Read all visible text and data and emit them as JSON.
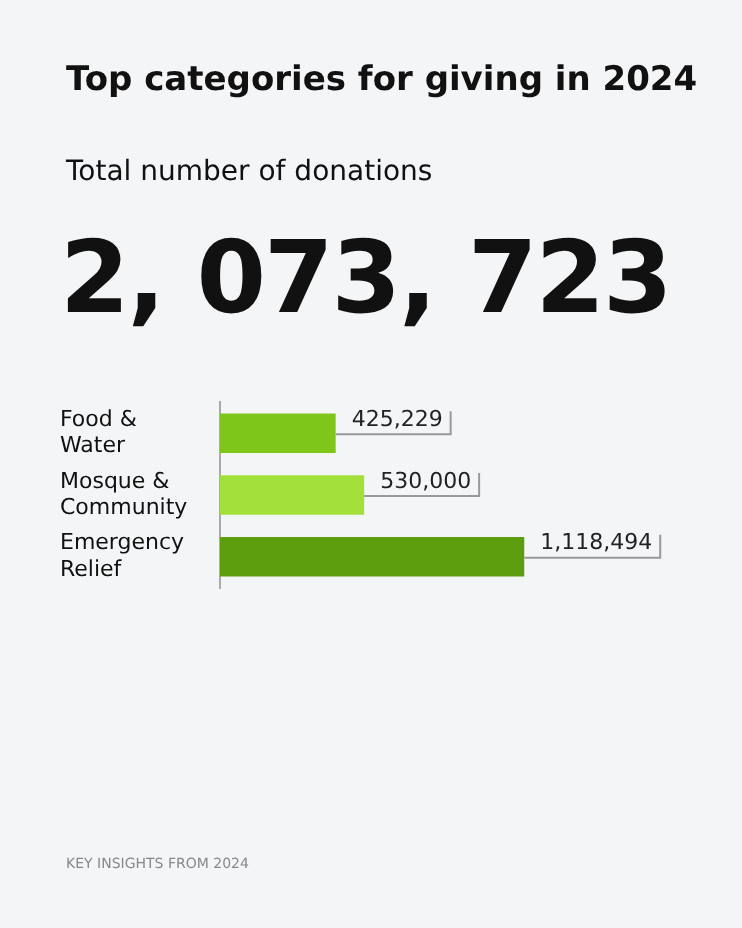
{
  "chart_data": {
    "type": "bar",
    "orientation": "horizontal",
    "title": "Top categories for giving in 2024",
    "subtitle": "Total number of donations",
    "categories": [
      "Food & Water",
      "Mosque & Community",
      "Emergency Relief"
    ],
    "values": [
      425229,
      530000,
      1118494
    ],
    "value_labels": [
      "425,229",
      "530,000",
      "1,118,494"
    ],
    "colors": [
      "#7ec71a",
      "#a2e03a",
      "#5c9e0e"
    ],
    "annotations": [
      "2, 073, 723",
      "KEY INSIGHTS FROM 2024"
    ],
    "grid": false,
    "legend": false
  }
}
